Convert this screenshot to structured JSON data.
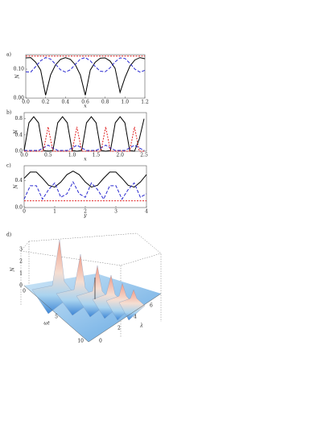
{
  "chart_data": [
    {
      "type": "line",
      "panel": "a)",
      "xlabel": "x",
      "ylabel": "N",
      "xlim": [
        0,
        1.2
      ],
      "ylim": [
        0,
        0.15
      ],
      "xticks": [
        {
          "value": 0,
          "label": "0.0"
        },
        0.2,
        0.4,
        0.6,
        0.8,
        {
          "value": 1,
          "label": "1.0"
        },
        1.2
      ],
      "yticks": [
        {
          "value": 0,
          "label": "0.00"
        },
        {
          "value": 0.1,
          "label": "0.10"
        }
      ],
      "x": [
        0,
        0.05,
        0.1,
        0.15,
        0.2,
        0.25,
        0.3,
        0.35,
        0.4,
        0.45,
        0.5,
        0.55,
        0.6,
        0.65,
        0.7,
        0.75,
        0.8,
        0.85,
        0.9,
        0.95,
        1.0,
        1.05,
        1.1,
        1.15,
        1.2
      ],
      "series": [
        {
          "color": "#000000",
          "dash": "none",
          "values": [
            0.139,
            0.14,
            0.124,
            0.097,
            0.01,
            0.08,
            0.115,
            0.134,
            0.14,
            0.134,
            0.115,
            0.08,
            0.01,
            0.097,
            0.124,
            0.138,
            0.139,
            0.128,
            0.103,
            0.02,
            0.071,
            0.111,
            0.132,
            0.14,
            0.136
          ]
        },
        {
          "color": "#2a2ad0",
          "dash": "4 2",
          "values": [
            0.091,
            0.09,
            0.109,
            0.129,
            0.14,
            0.135,
            0.117,
            0.098,
            0.09,
            0.098,
            0.117,
            0.135,
            0.14,
            0.129,
            0.109,
            0.093,
            0.091,
            0.105,
            0.125,
            0.139,
            0.137,
            0.12,
            0.1,
            0.09,
            0.096
          ]
        },
        {
          "color": "#e02020",
          "dash": "2 1.5",
          "values": [
            0.145,
            0.145,
            0.145,
            0.145,
            0.145,
            0.145,
            0.145,
            0.145,
            0.145,
            0.145,
            0.145,
            0.145,
            0.145,
            0.145,
            0.145,
            0.145,
            0.145,
            0.145,
            0.145,
            0.145,
            0.145,
            0.145,
            0.145,
            0.145,
            0.145
          ]
        }
      ]
    },
    {
      "type": "line",
      "panel": "b)",
      "xlabel": "x",
      "ylabel": "N",
      "xlim": [
        0,
        2.55
      ],
      "ylim": [
        0,
        0.95
      ],
      "xticks": [
        {
          "value": 0,
          "label": "0.0"
        },
        0.5,
        {
          "value": 1,
          "label": "1.0"
        },
        1.5,
        {
          "value": 2,
          "label": "2.0"
        },
        2.5
      ],
      "yticks": [
        {
          "value": 0,
          "label": "0.0"
        },
        0.4,
        0.8
      ],
      "x": [
        0,
        0.1,
        0.2,
        0.3,
        0.4,
        0.5,
        0.6,
        0.7,
        0.8,
        0.9,
        1.0,
        1.1,
        1.2,
        1.3,
        1.4,
        1.5,
        1.6,
        1.7,
        1.8,
        1.9,
        2.0,
        2.1,
        2.2,
        2.3,
        2.4,
        2.5
      ],
      "series": [
        {
          "color": "#000000",
          "dash": "none",
          "values": [
            0.02,
            0.7,
            0.85,
            0.7,
            0.02,
            0,
            0.02,
            0.7,
            0.85,
            0.7,
            0.02,
            0,
            0.02,
            0.7,
            0.85,
            0.7,
            0.02,
            0,
            0.02,
            0.7,
            0.85,
            0.7,
            0.02,
            0,
            0.3,
            0.8
          ]
        },
        {
          "color": "#2a2ad0",
          "dash": "4 2",
          "values": [
            0.02,
            0.02,
            0.02,
            0.02,
            0.08,
            0.15,
            0.08,
            0.02,
            0.02,
            0.02,
            0.08,
            0.15,
            0.08,
            0.02,
            0.02,
            0.02,
            0.08,
            0.15,
            0.08,
            0.02,
            0.02,
            0.02,
            0.08,
            0.15,
            0.08,
            0.02
          ]
        },
        {
          "color": "#e02020",
          "dash": "2 1.5",
          "values": [
            0,
            0,
            0,
            0,
            0,
            0.6,
            0,
            0,
            0,
            0,
            0,
            0.6,
            0,
            0,
            0,
            0,
            0,
            0.6,
            0,
            0,
            0,
            0,
            0,
            0.6,
            0,
            0
          ]
        }
      ]
    },
    {
      "type": "line",
      "panel": "c)",
      "xlabel": "y",
      "ylabel": "N",
      "xlim": [
        0,
        4
      ],
      "ylim": [
        0,
        0.62
      ],
      "xticks": [
        0,
        1,
        2,
        3,
        4
      ],
      "yticks": [
        {
          "value": 0,
          "label": "0.0"
        },
        0.4
      ],
      "x": [
        0,
        0.2,
        0.4,
        0.6,
        0.8,
        1.0,
        1.2,
        1.4,
        1.6,
        1.8,
        2.0,
        2.2,
        2.4,
        2.6,
        2.8,
        3.0,
        3.2,
        3.4,
        3.6,
        3.8,
        4.0
      ],
      "series": [
        {
          "color": "#000000",
          "dash": "none",
          "values": [
            0.434,
            0.526,
            0.526,
            0.434,
            0.33,
            0.303,
            0.378,
            0.488,
            0.54,
            0.488,
            0.378,
            0.303,
            0.33,
            0.435,
            0.526,
            0.526,
            0.434,
            0.33,
            0.303,
            0.378,
            0.488
          ]
        },
        {
          "color": "#2a2ad0",
          "dash": "4 2",
          "values": [
            0.124,
            0.324,
            0.324,
            0.124,
            0.266,
            0.365,
            0.152,
            0.204,
            0.38,
            0.204,
            0.152,
            0.365,
            0.266,
            0.124,
            0.324,
            0.324,
            0.124,
            0.266,
            0.365,
            0.152,
            0.204
          ]
        },
        {
          "color": "#e02020",
          "dash": "2 1.5",
          "values": [
            0.1,
            0.1,
            0.1,
            0.1,
            0.1,
            0.1,
            0.1,
            0.1,
            0.1,
            0.1,
            0.1,
            0.1,
            0.1,
            0.1,
            0.1,
            0.1,
            0.1,
            0.1,
            0.1,
            0.1,
            0.1
          ]
        }
      ]
    },
    {
      "type": "surface3d",
      "panel": "d)",
      "xlabel": "ωt",
      "ylabel": "λ",
      "zlabel": "N",
      "xticks": [
        0,
        5,
        10
      ],
      "yticks": [
        0,
        2,
        4,
        6
      ],
      "zticks": [
        0,
        1,
        2,
        3
      ]
    }
  ]
}
